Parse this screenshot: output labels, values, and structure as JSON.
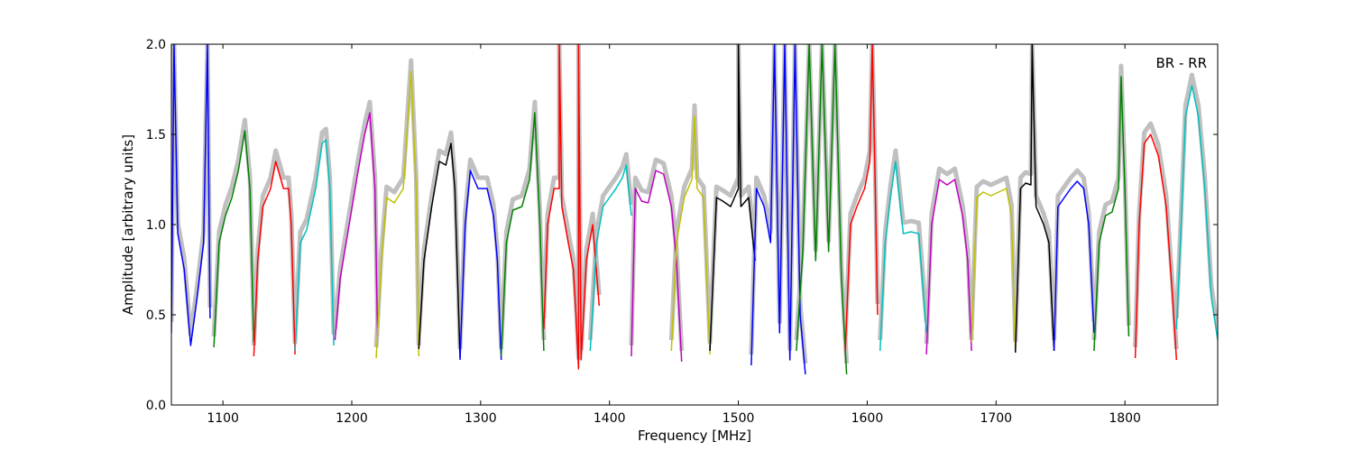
{
  "chart_data": {
    "type": "line",
    "title": "",
    "annotation": "BR - RR",
    "annotation_position": "top-right",
    "xlabel": "Frequency [MHz]",
    "ylabel": "Amplitude [arbitrary units]",
    "xlim": [
      1060,
      1872
    ],
    "ylim": [
      0.0,
      2.0
    ],
    "xticks": [
      1100,
      1200,
      1300,
      1400,
      1500,
      1600,
      1700,
      1800
    ],
    "xtick_labels": [
      "1100",
      "1200",
      "1300",
      "1400",
      "1500",
      "1600",
      "1700",
      "1800"
    ],
    "yticks": [
      0.0,
      0.5,
      1.0,
      1.5,
      2.0
    ],
    "ytick_labels": [
      "0.0",
      "0.5",
      "1.0",
      "1.5",
      "2.0"
    ],
    "grid": false,
    "background_color": "#c0c0c0",
    "series": [
      {
        "color": "#0000ff",
        "x": [
          1060,
          1062,
          1065,
          1070,
          1075,
          1080,
          1085,
          1088,
          1090
        ],
        "y": [
          0.4,
          2.0,
          0.95,
          0.75,
          0.33,
          0.6,
          0.9,
          2.0,
          0.48
        ]
      },
      {
        "color": "#008000",
        "x": [
          1093,
          1097,
          1102,
          1107,
          1112,
          1117,
          1121,
          1124
        ],
        "y": [
          0.32,
          0.9,
          1.05,
          1.15,
          1.3,
          1.52,
          1.2,
          0.35
        ]
      },
      {
        "color": "#ff0000",
        "x": [
          1124,
          1127,
          1131,
          1137,
          1141,
          1147,
          1151,
          1153,
          1156
        ],
        "y": [
          0.27,
          0.8,
          1.1,
          1.2,
          1.35,
          1.2,
          1.2,
          1.0,
          0.28
        ]
      },
      {
        "color": "#00bfbf",
        "x": [
          1156,
          1160,
          1165,
          1172,
          1177,
          1180,
          1183,
          1186
        ],
        "y": [
          0.3,
          0.9,
          0.97,
          1.2,
          1.45,
          1.47,
          1.2,
          0.33
        ]
      },
      {
        "color": "#bf00bf",
        "x": [
          1187,
          1191,
          1198,
          1205,
          1210,
          1214,
          1218,
          1220
        ],
        "y": [
          0.36,
          0.7,
          1.0,
          1.3,
          1.5,
          1.62,
          1.2,
          0.38
        ]
      },
      {
        "color": "#bfbf00",
        "x": [
          1219,
          1223,
          1227,
          1233,
          1240,
          1246,
          1250,
          1252
        ],
        "y": [
          0.26,
          0.8,
          1.15,
          1.12,
          1.2,
          1.85,
          1.2,
          0.27
        ]
      },
      {
        "color": "#000000",
        "x": [
          1252,
          1256,
          1262,
          1268,
          1273,
          1277,
          1280,
          1284
        ],
        "y": [
          0.31,
          0.8,
          1.1,
          1.35,
          1.33,
          1.45,
          1.2,
          0.26
        ]
      },
      {
        "color": "#0000ff",
        "x": [
          1284,
          1288,
          1292,
          1298,
          1305,
          1310,
          1313,
          1316
        ],
        "y": [
          0.25,
          1.0,
          1.3,
          1.2,
          1.2,
          1.05,
          0.8,
          0.25
        ]
      },
      {
        "color": "#008000",
        "x": [
          1316,
          1320,
          1325,
          1332,
          1338,
          1342,
          1346,
          1349
        ],
        "y": [
          0.27,
          0.9,
          1.08,
          1.1,
          1.25,
          1.62,
          1.0,
          0.3
        ]
      },
      {
        "color": "#ff0000",
        "x": [
          1349,
          1352,
          1357,
          1361,
          1361,
          1363,
          1368,
          1372,
          1374,
          1376,
          1376,
          1378,
          1382,
          1387,
          1392
        ],
        "y": [
          0.42,
          1.0,
          1.2,
          1.2,
          2.0,
          1.1,
          0.9,
          0.75,
          0.5,
          0.2,
          2.0,
          0.25,
          0.8,
          1.0,
          0.55
        ]
      },
      {
        "color": "#00bfbf",
        "x": [
          1385,
          1390,
          1395,
          1400,
          1405,
          1410,
          1413,
          1417
        ],
        "y": [
          0.3,
          0.9,
          1.1,
          1.15,
          1.2,
          1.26,
          1.33,
          1.05
        ]
      },
      {
        "color": "#bf00bf",
        "x": [
          1417,
          1420,
          1425,
          1430,
          1436,
          1442,
          1448,
          1452,
          1456
        ],
        "y": [
          0.27,
          1.2,
          1.13,
          1.12,
          1.3,
          1.28,
          1.1,
          0.8,
          0.24
        ]
      },
      {
        "color": "#bfbf00",
        "x": [
          1448,
          1452,
          1458,
          1464,
          1466,
          1468,
          1473,
          1478
        ],
        "y": [
          0.3,
          0.9,
          1.15,
          1.25,
          1.6,
          1.2,
          1.15,
          0.28
        ]
      },
      {
        "color": "#000000",
        "x": [
          1478,
          1483,
          1488,
          1494,
          1500,
          1500,
          1502,
          1508,
          1513
        ],
        "y": [
          0.3,
          1.15,
          1.13,
          1.1,
          1.2,
          2.0,
          1.1,
          1.15,
          0.8
        ]
      },
      {
        "color": "#0000ff",
        "x": [
          1510,
          1514,
          1520,
          1525,
          1528,
          1532,
          1536,
          1540,
          1544,
          1548,
          1552
        ],
        "y": [
          0.22,
          1.2,
          1.1,
          0.9,
          2.0,
          0.4,
          2.0,
          0.25,
          2.0,
          0.5,
          0.17
        ]
      },
      {
        "color": "#008000",
        "x": [
          1545,
          1550,
          1555,
          1560,
          1565,
          1570,
          1575,
          1580,
          1584
        ],
        "y": [
          0.3,
          0.85,
          2.0,
          0.8,
          2.0,
          0.85,
          2.0,
          0.7,
          0.17
        ]
      },
      {
        "color": "#ff0000",
        "x": [
          1583,
          1587,
          1592,
          1598,
          1602,
          1604,
          1606,
          1608
        ],
        "y": [
          0.3,
          1.0,
          1.1,
          1.2,
          1.35,
          2.0,
          1.3,
          0.5
        ]
      },
      {
        "color": "#00bfbf",
        "x": [
          1610,
          1614,
          1618,
          1622,
          1628,
          1634,
          1640,
          1646
        ],
        "y": [
          0.3,
          0.9,
          1.15,
          1.35,
          0.95,
          0.96,
          0.95,
          0.4
        ]
      },
      {
        "color": "#bf00bf",
        "x": [
          1646,
          1650,
          1656,
          1662,
          1668,
          1674,
          1678,
          1681
        ],
        "y": [
          0.28,
          1.0,
          1.25,
          1.22,
          1.25,
          1.05,
          0.8,
          0.3
        ]
      },
      {
        "color": "#bfbf00",
        "x": [
          1681,
          1685,
          1690,
          1696,
          1702,
          1708,
          1712,
          1715
        ],
        "y": [
          0.35,
          1.15,
          1.18,
          1.16,
          1.18,
          1.2,
          1.05,
          0.3
        ]
      },
      {
        "color": "#000000",
        "x": [
          1715,
          1719,
          1723,
          1727,
          1728,
          1731,
          1737,
          1741,
          1745
        ],
        "y": [
          0.29,
          1.2,
          1.23,
          1.22,
          2.0,
          1.1,
          1.0,
          0.9,
          0.3
        ]
      },
      {
        "color": "#0000ff",
        "x": [
          1745,
          1748,
          1753,
          1758,
          1763,
          1768,
          1772,
          1776
        ],
        "y": [
          0.3,
          1.1,
          1.15,
          1.2,
          1.24,
          1.2,
          1.0,
          0.4
        ]
      },
      {
        "color": "#008000",
        "x": [
          1776,
          1780,
          1785,
          1790,
          1795,
          1797,
          1800,
          1803
        ],
        "y": [
          0.3,
          0.9,
          1.05,
          1.07,
          1.2,
          1.82,
          1.2,
          0.38
        ]
      },
      {
        "color": "#ff0000",
        "x": [
          1808,
          1811,
          1815,
          1820,
          1826,
          1832,
          1837,
          1840
        ],
        "y": [
          0.26,
          1.0,
          1.45,
          1.5,
          1.38,
          1.1,
          0.6,
          0.25
        ]
      },
      {
        "color": "#00bfbf",
        "x": [
          1840,
          1843,
          1847,
          1852,
          1857,
          1862,
          1867,
          1872
        ],
        "y": [
          0.42,
          0.9,
          1.6,
          1.77,
          1.6,
          1.2,
          0.6,
          0.36
        ]
      }
    ]
  }
}
